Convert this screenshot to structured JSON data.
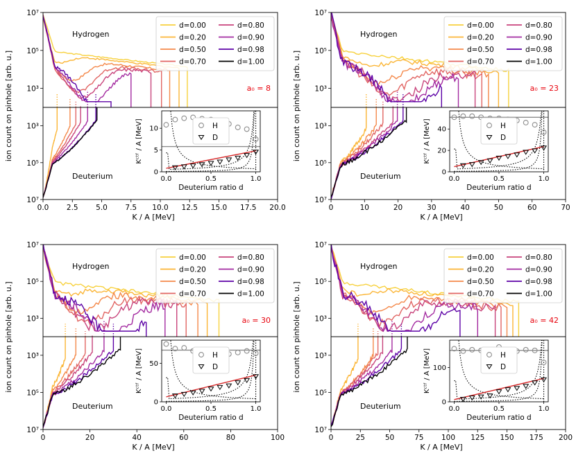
{
  "figure": {
    "ylabel": "ion count on pinhole  [arb. u.]",
    "xlabel": "K / A  [MeV]",
    "hydrogen_label": "Hydrogen",
    "deuterium_label": "Deuterium",
    "inset_xlabel": "Deuterium ratio d",
    "inset_ylabel": "Kᶜᵗᶠ / A  [MeV]",
    "inset_legend": [
      "H",
      "D"
    ],
    "top_yticks": [
      "10⁷",
      "10⁵",
      "10³"
    ],
    "bottom_yticks": [
      "10³",
      "10⁵",
      "10⁷"
    ],
    "legend": [
      {
        "label": "d=0.00",
        "color": "#f7d13d"
      },
      {
        "label": "d=0.20",
        "color": "#fbb535"
      },
      {
        "label": "d=0.50",
        "color": "#f48849"
      },
      {
        "label": "d=0.70",
        "color": "#e16462"
      },
      {
        "label": "d=0.80",
        "color": "#c8437b"
      },
      {
        "label": "d=0.90",
        "color": "#a32aa0"
      },
      {
        "label": "d=0.98",
        "color": "#5c01a6"
      },
      {
        "label": "d=1.00",
        "color": "#000000"
      }
    ],
    "colors": {
      "fit_line": "#d62728",
      "a0_label": "#e8000b",
      "H_marker": "#8c8c8c",
      "H_mean_line": "#8c8c8c"
    }
  },
  "chart_data": [
    {
      "type": "line",
      "a0_label": "a₀ = 8",
      "xlim": [
        0,
        20
      ],
      "xticks": [
        "0.0",
        "2.5",
        "5.0",
        "7.5",
        "10.0",
        "12.5",
        "15.0",
        "17.5",
        "20.0"
      ],
      "cutoff_H": [
        12.3,
        11.6,
        10.8,
        10.1,
        9.2,
        7.5,
        5.8,
        0
      ],
      "cutoff_D": [
        0,
        1.2,
        2.3,
        2.8,
        3.2,
        3.8,
        4.5,
        4.6
      ],
      "inset": {
        "ylim": [
          0,
          14
        ],
        "yticks": [
          "0",
          "5",
          "10"
        ],
        "xticks": [
          "0.0",
          "0.5",
          "1.0"
        ],
        "d": [
          0,
          0.1,
          0.2,
          0.3,
          0.4,
          0.5,
          0.6,
          0.7,
          0.8,
          0.9,
          1.0
        ],
        "H": [
          10.8,
          12.0,
          12.3,
          12.5,
          12.2,
          12.0,
          11.5,
          11.0,
          10.2,
          9.8,
          7.5
        ],
        "D": [
          null,
          1.0,
          1.2,
          1.4,
          1.7,
          2.0,
          2.3,
          2.8,
          3.2,
          3.8,
          4.6
        ],
        "H_mean": 5.8
      }
    },
    {
      "type": "line",
      "a0_label": "a₀ = 23",
      "xlim": [
        0,
        70
      ],
      "xticks": [
        "0",
        "10",
        "20",
        "30",
        "40",
        "50",
        "60",
        "70"
      ],
      "cutoff_H": [
        53,
        50,
        47,
        45,
        43,
        38,
        33,
        0
      ],
      "cutoff_D": [
        0,
        10.5,
        13.5,
        15.5,
        18.5,
        19.8,
        21.5,
        22.5
      ],
      "inset": {
        "ylim": [
          0,
          57
        ],
        "yticks": [
          "0",
          "20",
          "40"
        ],
        "xticks": [
          "0.0",
          "0.5",
          "1.0"
        ],
        "d": [
          0,
          0.1,
          0.2,
          0.3,
          0.4,
          0.5,
          0.6,
          0.7,
          0.8,
          0.9,
          1.0
        ],
        "H": [
          51,
          52,
          52,
          51,
          50,
          50,
          49,
          48,
          46,
          44,
          37
        ],
        "D": [
          null,
          6,
          7,
          9,
          10.5,
          13,
          14.5,
          16,
          18.5,
          19.8,
          22.5
        ],
        "H_mean": 51
      }
    },
    {
      "type": "line",
      "a0_label": "a₀ = 30",
      "xlim": [
        0,
        100
      ],
      "xticks": [
        "0",
        "20",
        "40",
        "60",
        "80",
        "100"
      ],
      "cutoff_H": [
        75,
        70,
        66,
        61,
        57,
        52,
        44,
        0
      ],
      "cutoff_D": [
        0,
        9.5,
        14,
        18,
        21,
        26,
        30,
        33
      ],
      "inset": {
        "ylim": [
          0,
          80
        ],
        "yticks": [
          "0",
          "50"
        ],
        "xticks": [
          "0.0",
          "0.5",
          "1.0"
        ],
        "d": [
          0,
          0.1,
          0.2,
          0.3,
          0.4,
          0.5,
          0.6,
          0.7,
          0.8,
          0.9,
          1.0
        ],
        "H": [
          75,
          69,
          70,
          66,
          64,
          65,
          63,
          62,
          64,
          66,
          63
        ],
        "D": [
          null,
          8,
          10,
          12,
          14,
          17,
          19,
          21,
          25,
          28,
          33
        ],
        "H_mean": 67
      }
    },
    {
      "type": "line",
      "a0_label": "a₀ = 42",
      "xlim": [
        0,
        200
      ],
      "xticks": [
        "0",
        "25",
        "50",
        "75",
        "100",
        "125",
        "150",
        "175",
        "200"
      ],
      "cutoff_H": [
        160,
        155,
        150,
        145,
        140,
        125,
        110,
        0
      ],
      "cutoff_D": [
        0,
        23,
        36,
        40,
        44,
        52,
        60,
        65
      ],
      "inset": {
        "ylim": [
          0,
          180
        ],
        "yticks": [
          "0",
          "100"
        ],
        "xticks": [
          "0.0",
          "0.5",
          "1.0"
        ],
        "d": [
          0,
          0.1,
          0.2,
          0.3,
          0.4,
          0.5,
          0.6,
          0.7,
          0.8,
          0.9,
          1.0
        ],
        "H": [
          155,
          148,
          152,
          150,
          145,
          160,
          150,
          148,
          152,
          150,
          115
        ],
        "D": [
          null,
          8,
          12,
          15,
          18,
          30,
          36,
          40,
          46,
          56,
          65
        ],
        "H_mean": 150
      }
    }
  ]
}
